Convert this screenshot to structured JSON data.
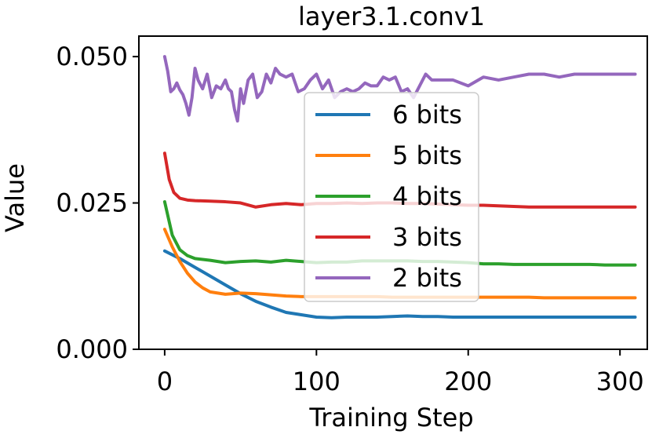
{
  "chart_data": {
    "type": "line",
    "title": "layer3.1.conv1",
    "xlabel": "Training Step",
    "ylabel": "Value",
    "xlim": [
      -17,
      318
    ],
    "ylim": [
      0.0,
      0.0535
    ],
    "x_ticks": [
      0,
      100,
      200,
      300
    ],
    "y_ticks": [
      0.0,
      0.025,
      0.05
    ],
    "x_tick_labels": [
      "0",
      "100",
      "200",
      "300"
    ],
    "y_tick_labels": [
      "0.000",
      "0.025",
      "0.050"
    ],
    "grid": false,
    "legend_position": "center",
    "series": [
      {
        "name": "6 bits",
        "color": "#1f77b4",
        "x": [
          0,
          10,
          20,
          30,
          40,
          50,
          60,
          70,
          80,
          90,
          100,
          110,
          120,
          130,
          140,
          150,
          160,
          170,
          180,
          190,
          200,
          210,
          220,
          230,
          240,
          250,
          260,
          270,
          280,
          290,
          300,
          310
        ],
        "values": [
          0.0168,
          0.0155,
          0.014,
          0.0125,
          0.011,
          0.0095,
          0.0082,
          0.0072,
          0.0063,
          0.0059,
          0.0055,
          0.0054,
          0.0055,
          0.0055,
          0.0055,
          0.0056,
          0.0057,
          0.0056,
          0.0056,
          0.0055,
          0.0055,
          0.0055,
          0.0055,
          0.0055,
          0.0055,
          0.0055,
          0.0055,
          0.0055,
          0.0055,
          0.0055,
          0.0055,
          0.0055
        ]
      },
      {
        "name": "5 bits",
        "color": "#ff7f0e",
        "x": [
          0,
          5,
          10,
          15,
          20,
          25,
          30,
          40,
          50,
          60,
          70,
          80,
          90,
          100,
          110,
          120,
          130,
          140,
          150,
          160,
          170,
          180,
          190,
          200,
          210,
          220,
          230,
          240,
          250,
          260,
          270,
          280,
          290,
          300,
          310
        ],
        "values": [
          0.0205,
          0.0175,
          0.015,
          0.013,
          0.0115,
          0.0105,
          0.0098,
          0.0094,
          0.0096,
          0.0095,
          0.0093,
          0.0091,
          0.009,
          0.009,
          0.009,
          0.009,
          0.009,
          0.009,
          0.0089,
          0.0089,
          0.0089,
          0.0089,
          0.0089,
          0.0089,
          0.0089,
          0.0089,
          0.0089,
          0.0089,
          0.0088,
          0.0088,
          0.0088,
          0.0088,
          0.0088,
          0.0088,
          0.0088
        ]
      },
      {
        "name": "4 bits",
        "color": "#2ca02c",
        "x": [
          0,
          5,
          10,
          15,
          20,
          30,
          40,
          50,
          60,
          70,
          80,
          90,
          100,
          110,
          120,
          130,
          140,
          150,
          160,
          170,
          180,
          190,
          200,
          210,
          220,
          230,
          240,
          250,
          260,
          270,
          280,
          290,
          300,
          310
        ],
        "values": [
          0.0252,
          0.0195,
          0.017,
          0.016,
          0.0155,
          0.0152,
          0.0148,
          0.015,
          0.0151,
          0.0149,
          0.0152,
          0.015,
          0.0148,
          0.0149,
          0.0149,
          0.0151,
          0.0151,
          0.0151,
          0.0151,
          0.015,
          0.015,
          0.0149,
          0.0148,
          0.0146,
          0.0146,
          0.0145,
          0.0145,
          0.0145,
          0.0145,
          0.0145,
          0.0145,
          0.0144,
          0.0144,
          0.0144
        ]
      },
      {
        "name": "3 bits",
        "color": "#d62728",
        "x": [
          0,
          3,
          6,
          10,
          15,
          20,
          30,
          40,
          50,
          60,
          70,
          80,
          90,
          100,
          110,
          120,
          130,
          140,
          150,
          160,
          170,
          180,
          190,
          200,
          210,
          220,
          230,
          240,
          250,
          260,
          270,
          280,
          290,
          300,
          310
        ],
        "values": [
          0.0335,
          0.029,
          0.0268,
          0.0258,
          0.0255,
          0.0254,
          0.0253,
          0.0252,
          0.025,
          0.0243,
          0.0247,
          0.0249,
          0.0247,
          0.0249,
          0.0249,
          0.025,
          0.0249,
          0.025,
          0.025,
          0.0249,
          0.0249,
          0.0248,
          0.0247,
          0.0246,
          0.0246,
          0.0245,
          0.0244,
          0.0243,
          0.0243,
          0.0243,
          0.0243,
          0.0243,
          0.0243,
          0.0243,
          0.0243
        ]
      },
      {
        "name": "2 bits",
        "color": "#9467bd",
        "x": [
          0,
          2,
          4,
          6,
          8,
          10,
          12,
          14,
          16,
          18,
          20,
          22,
          25,
          28,
          31,
          34,
          37,
          40,
          42,
          44,
          46,
          48,
          50,
          52,
          55,
          58,
          61,
          64,
          67,
          70,
          73,
          76,
          80,
          84,
          88,
          92,
          96,
          100,
          104,
          108,
          112,
          116,
          120,
          124,
          128,
          132,
          136,
          140,
          144,
          148,
          152,
          156,
          160,
          164,
          168,
          172,
          176,
          180,
          190,
          200,
          210,
          220,
          230,
          240,
          250,
          260,
          270,
          280,
          290,
          300,
          310
        ],
        "values": [
          0.05,
          0.0475,
          0.044,
          0.0445,
          0.0455,
          0.0443,
          0.0435,
          0.042,
          0.04,
          0.043,
          0.048,
          0.046,
          0.0445,
          0.047,
          0.043,
          0.045,
          0.0445,
          0.046,
          0.0445,
          0.044,
          0.041,
          0.039,
          0.0445,
          0.042,
          0.046,
          0.047,
          0.043,
          0.044,
          0.047,
          0.0455,
          0.048,
          0.047,
          0.0465,
          0.047,
          0.044,
          0.0445,
          0.046,
          0.047,
          0.0445,
          0.046,
          0.043,
          0.044,
          0.0445,
          0.044,
          0.0445,
          0.0455,
          0.045,
          0.045,
          0.0465,
          0.046,
          0.0465,
          0.044,
          0.0445,
          0.043,
          0.045,
          0.047,
          0.046,
          0.046,
          0.046,
          0.045,
          0.0465,
          0.046,
          0.0465,
          0.047,
          0.047,
          0.0465,
          0.047,
          0.047,
          0.047,
          0.047,
          0.047
        ]
      }
    ]
  }
}
